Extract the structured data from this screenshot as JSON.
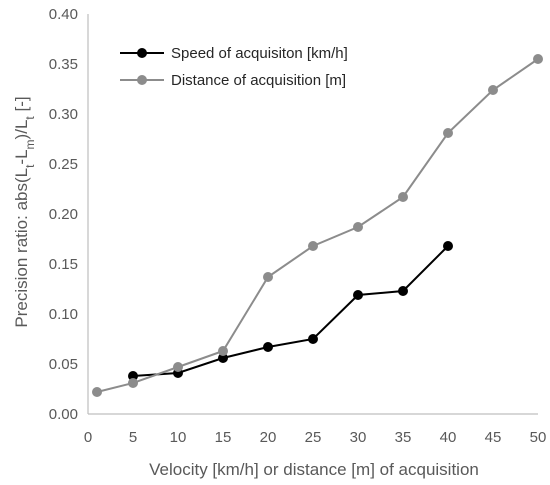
{
  "chart_data": {
    "type": "line",
    "title": "",
    "xlabel": "Velocity [km/h] or distance [m] of acquisition",
    "ylabel_parts": [
      "Precision ratio: abs(L",
      "t",
      "-L",
      "m",
      ")/L",
      "t",
      " [-]"
    ],
    "xlim": [
      0,
      50
    ],
    "ylim": [
      0,
      0.4
    ],
    "x_ticks": [
      0,
      5,
      10,
      15,
      20,
      25,
      30,
      35,
      40,
      45,
      50
    ],
    "y_ticks": [
      0.0,
      0.05,
      0.1,
      0.15,
      0.2,
      0.25,
      0.3,
      0.35,
      0.4
    ],
    "x_tick_labels": [
      "0",
      "5",
      "10",
      "15",
      "20",
      "25",
      "30",
      "35",
      "40",
      "45",
      "50"
    ],
    "y_tick_labels": [
      "0.00",
      "0.05",
      "0.10",
      "0.15",
      "0.20",
      "0.25",
      "0.30",
      "0.35",
      "0.40"
    ],
    "grid": false,
    "legend_position": "top-left",
    "series": [
      {
        "name": "Speed of acquisiton [km/h]",
        "color": "#000000",
        "x": [
          5,
          10,
          15,
          20,
          25,
          30,
          35,
          40
        ],
        "y": [
          0.038,
          0.041,
          0.056,
          0.067,
          0.075,
          0.119,
          0.123,
          0.168
        ]
      },
      {
        "name": "Distance of acquisition [m]",
        "color": "#8c8c8c",
        "x": [
          1,
          5,
          10,
          15,
          20,
          25,
          30,
          35,
          40,
          45,
          50
        ],
        "y": [
          0.022,
          0.031,
          0.047,
          0.063,
          0.137,
          0.168,
          0.187,
          0.217,
          0.281,
          0.324,
          0.355
        ]
      }
    ]
  }
}
